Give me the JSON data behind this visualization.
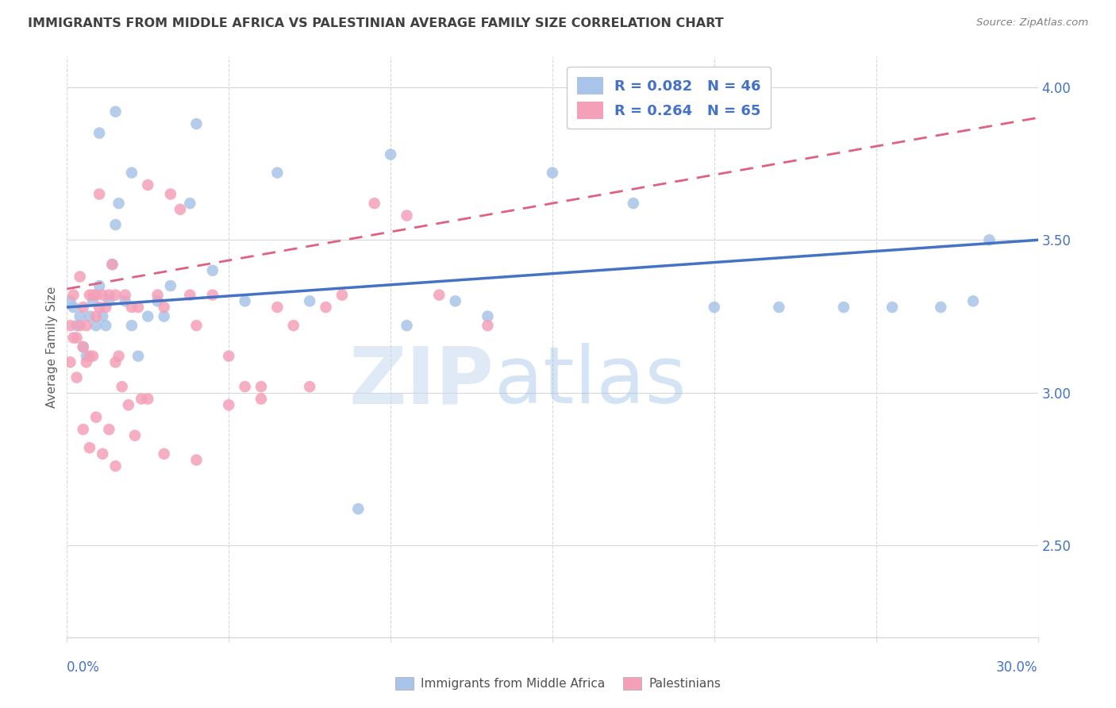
{
  "title": "IMMIGRANTS FROM MIDDLE AFRICA VS PALESTINIAN AVERAGE FAMILY SIZE CORRELATION CHART",
  "source": "Source: ZipAtlas.com",
  "ylabel": "Average Family Size",
  "yticks_right": [
    2.5,
    3.0,
    3.5,
    4.0
  ],
  "xrange": [
    0.0,
    0.3
  ],
  "yrange": [
    2.2,
    4.1
  ],
  "watermark_zip": "ZIP",
  "watermark_atlas": "atlas",
  "legend_text1": "R = 0.082   N = 46",
  "legend_text2": "R = 0.264   N = 65",
  "series1_color": "#a8c4e8",
  "series2_color": "#f4a0b8",
  "series1_name": "Immigrants from Middle Africa",
  "series2_name": "Palestinians",
  "trend1_color": "#4472c4",
  "trend2_color": "#e06080",
  "blue_label_color": "#4472c4",
  "title_color": "#404040",
  "source_color": "#808080",
  "ylabel_color": "#606060",
  "grid_color": "#d8d8d8",
  "blue_x": [
    0.001,
    0.002,
    0.003,
    0.004,
    0.005,
    0.006,
    0.007,
    0.008,
    0.009,
    0.01,
    0.011,
    0.012,
    0.013,
    0.014,
    0.015,
    0.016,
    0.018,
    0.02,
    0.022,
    0.025,
    0.028,
    0.03,
    0.032,
    0.038,
    0.04,
    0.045,
    0.055,
    0.065,
    0.075,
    0.09,
    0.105,
    0.12,
    0.15,
    0.175,
    0.2,
    0.22,
    0.24,
    0.255,
    0.27,
    0.285,
    0.01,
    0.015,
    0.02,
    0.1,
    0.13,
    0.28
  ],
  "blue_y": [
    3.3,
    3.28,
    3.22,
    3.25,
    3.15,
    3.12,
    3.25,
    3.3,
    3.22,
    3.35,
    3.25,
    3.22,
    3.3,
    3.42,
    3.55,
    3.62,
    3.3,
    3.22,
    3.12,
    3.25,
    3.3,
    3.25,
    3.35,
    3.62,
    3.88,
    3.4,
    3.3,
    3.72,
    3.3,
    2.62,
    3.22,
    3.3,
    3.72,
    3.62,
    3.28,
    3.28,
    3.28,
    3.28,
    3.28,
    3.5,
    3.85,
    3.92,
    3.72,
    3.78,
    3.25,
    3.3
  ],
  "pink_x": [
    0.001,
    0.001,
    0.002,
    0.002,
    0.003,
    0.003,
    0.004,
    0.004,
    0.005,
    0.005,
    0.006,
    0.006,
    0.007,
    0.007,
    0.008,
    0.008,
    0.009,
    0.009,
    0.01,
    0.01,
    0.011,
    0.012,
    0.013,
    0.014,
    0.015,
    0.015,
    0.016,
    0.018,
    0.02,
    0.022,
    0.025,
    0.028,
    0.03,
    0.032,
    0.035,
    0.038,
    0.04,
    0.045,
    0.05,
    0.055,
    0.06,
    0.065,
    0.07,
    0.075,
    0.08,
    0.085,
    0.095,
    0.105,
    0.115,
    0.13,
    0.005,
    0.007,
    0.009,
    0.011,
    0.013,
    0.015,
    0.017,
    0.019,
    0.021,
    0.023,
    0.025,
    0.03,
    0.04,
    0.05,
    0.06
  ],
  "pink_y": [
    3.22,
    3.1,
    3.32,
    3.18,
    3.18,
    3.05,
    3.38,
    3.22,
    3.28,
    3.15,
    3.22,
    3.1,
    3.12,
    3.32,
    3.32,
    3.12,
    3.32,
    3.25,
    3.28,
    3.65,
    3.32,
    3.28,
    3.32,
    3.42,
    3.32,
    3.1,
    3.12,
    3.32,
    3.28,
    3.28,
    3.68,
    3.32,
    3.28,
    3.65,
    3.6,
    3.32,
    3.22,
    3.32,
    3.12,
    3.02,
    2.98,
    3.28,
    3.22,
    3.02,
    3.28,
    3.32,
    3.62,
    3.58,
    3.32,
    3.22,
    2.88,
    2.82,
    2.92,
    2.8,
    2.88,
    2.76,
    3.02,
    2.96,
    2.86,
    2.98,
    2.98,
    2.8,
    2.78,
    2.96,
    3.02
  ]
}
